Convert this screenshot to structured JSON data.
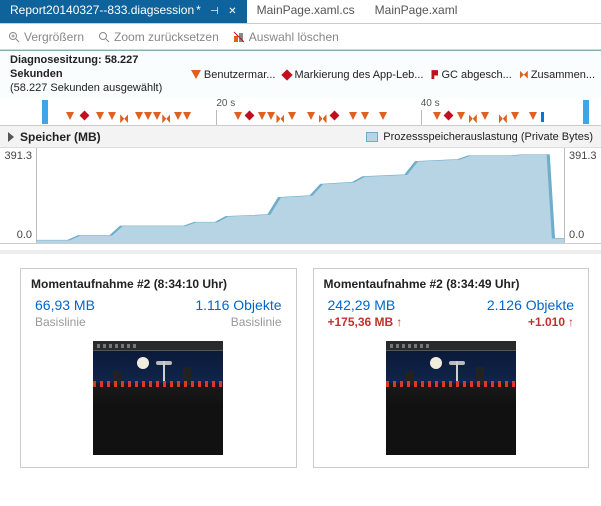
{
  "tabs": [
    {
      "label": "Report20140327--833.diagsession",
      "dirty": "*",
      "active": true
    },
    {
      "label": "MainPage.xaml.cs",
      "dirty": "",
      "active": false
    },
    {
      "label": "MainPage.xaml",
      "dirty": "",
      "active": false
    }
  ],
  "toolbar": {
    "zoom_in": "Vergrößern",
    "zoom_reset": "Zoom zurücksetzen",
    "clear_selection": "Auswahl löschen"
  },
  "session": {
    "line1": "Diagnosesitzung: 58.227 Sekunden",
    "line2": "(58.227 Sekunden ausgewählt)"
  },
  "legend": {
    "user": "Benutzermar...",
    "app": "Markierung des App-Leb...",
    "gc": "GC abgesch...",
    "summary": "Zusammen..."
  },
  "ruler": {
    "ticks": [
      {
        "x_pct": 36,
        "label": "20 s"
      },
      {
        "x_pct": 70,
        "label": "40 s"
      }
    ],
    "markers": [
      {
        "x": 7,
        "t": "bar"
      },
      {
        "x": 11,
        "t": "tri"
      },
      {
        "x": 13.5,
        "t": "dia"
      },
      {
        "x": 16,
        "t": "tri"
      },
      {
        "x": 18,
        "t": "tri"
      },
      {
        "x": 20,
        "t": "zz"
      },
      {
        "x": 22.5,
        "t": "tri"
      },
      {
        "x": 24,
        "t": "tri"
      },
      {
        "x": 25.5,
        "t": "tri"
      },
      {
        "x": 27,
        "t": "zz"
      },
      {
        "x": 29,
        "t": "tri"
      },
      {
        "x": 30.5,
        "t": "tri"
      },
      {
        "x": 39,
        "t": "tri"
      },
      {
        "x": 41,
        "t": "dia"
      },
      {
        "x": 43,
        "t": "tri"
      },
      {
        "x": 44.5,
        "t": "tri"
      },
      {
        "x": 46,
        "t": "zz"
      },
      {
        "x": 48,
        "t": "tri"
      },
      {
        "x": 51,
        "t": "tri"
      },
      {
        "x": 53,
        "t": "zz"
      },
      {
        "x": 55,
        "t": "dia"
      },
      {
        "x": 58,
        "t": "tri"
      },
      {
        "x": 60,
        "t": "tri"
      },
      {
        "x": 63,
        "t": "tri"
      },
      {
        "x": 72,
        "t": "tri"
      },
      {
        "x": 74,
        "t": "dia"
      },
      {
        "x": 76,
        "t": "tri"
      },
      {
        "x": 78,
        "t": "zz"
      },
      {
        "x": 80,
        "t": "tri"
      },
      {
        "x": 83,
        "t": "zz"
      },
      {
        "x": 85,
        "t": "tri"
      },
      {
        "x": 88,
        "t": "tri"
      },
      {
        "x": 90,
        "t": "tick"
      },
      {
        "x": 97,
        "t": "bar"
      }
    ]
  },
  "chart": {
    "title": "Speicher (MB)",
    "series_label": "Prozessspeicherauslastung (Private Bytes)",
    "ylim": [
      0,
      391.3
    ],
    "y_top_label": "391.3",
    "y_bot_label": "0.0",
    "area_color": "#b6d4e3",
    "line_color": "#6faecb",
    "points": [
      [
        0,
        3
      ],
      [
        6,
        3
      ],
      [
        8,
        8
      ],
      [
        14,
        8
      ],
      [
        16,
        18
      ],
      [
        28,
        18
      ],
      [
        30,
        22
      ],
      [
        34,
        22
      ],
      [
        36,
        28
      ],
      [
        44,
        30
      ],
      [
        46,
        48
      ],
      [
        52,
        50
      ],
      [
        54,
        62
      ],
      [
        60,
        64
      ],
      [
        62,
        70
      ],
      [
        70,
        72
      ],
      [
        72,
        86
      ],
      [
        80,
        88
      ],
      [
        82,
        92
      ],
      [
        90,
        92
      ],
      [
        92,
        93
      ],
      [
        96,
        93
      ],
      [
        97,
        93
      ],
      [
        98,
        5
      ],
      [
        100,
        5
      ]
    ]
  },
  "snapshots": [
    {
      "title": "Momentaufnahme #2 (8:34:10 Uhr)",
      "size": "66,93 MB",
      "objects": "1.116 Objekte",
      "sub_left": "Basislinie",
      "sub_right": "Basislinie",
      "delta": false
    },
    {
      "title": "Momentaufnahme #2 (8:34:49 Uhr)",
      "size": "242,29 MB",
      "objects": "2.126 Objekte",
      "sub_left": "+175,36 MB",
      "sub_right": "+1.010",
      "delta": true
    }
  ]
}
